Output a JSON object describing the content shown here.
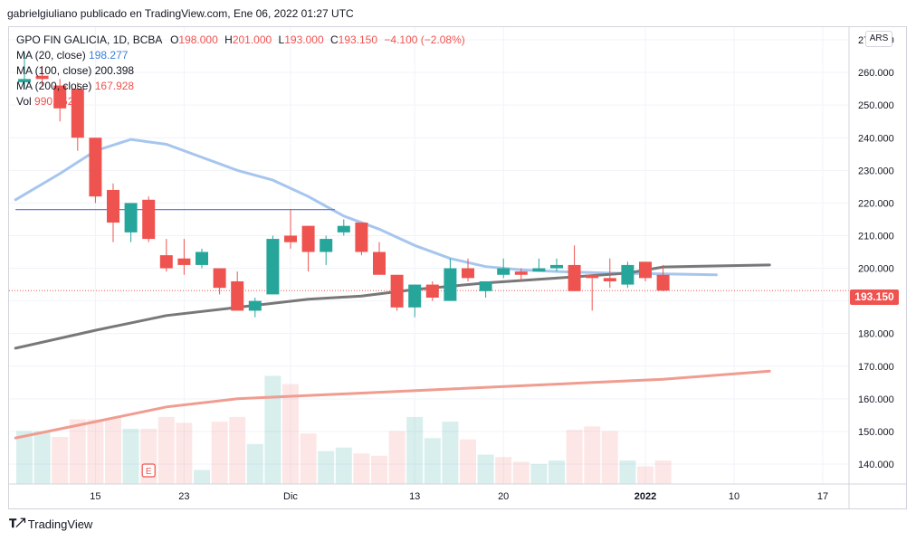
{
  "header": {
    "text": "gabrielgiuliano publicado en TradingView.com, Ene 06, 2022 01:27 UTC"
  },
  "legend": {
    "symbol": "GPO FIN GALICIA, 1D, BCBA",
    "o_label": "O",
    "o": "198.000",
    "h_label": "H",
    "h": "201.000",
    "l_label": "L",
    "l": "193.000",
    "c_label": "C",
    "c": "193.150",
    "change": "−4.100 (−2.08%)",
    "ma20_label": "MA (20, close)",
    "ma20": "198.277",
    "ma100_label": "MA (100, close)",
    "ma100": "200.398",
    "ma200_label": "MA (200, close)",
    "ma200": "167.928",
    "vol_label": "Vol",
    "vol": "990.352K"
  },
  "currency": "ARS",
  "last_price": "193.150",
  "colors": {
    "up": "#26a69a",
    "down": "#ef5350",
    "ma20": "#a6c6ee",
    "ma100": "#787878",
    "ma200": "#f09c90",
    "hline": "#5b7fe0"
  },
  "footer": {
    "brand": "TradingView",
    "logo": "tv-logo-icon"
  },
  "chart_data": {
    "type": "candlestick",
    "y_ticks": [
      "270.000",
      "260.000",
      "250.000",
      "240.000",
      "230.000",
      "220.000",
      "210.000",
      "200.000",
      "190.000",
      "180.000",
      "170.000",
      "160.000",
      "150.000",
      "140.000"
    ],
    "ylim": [
      135,
      275
    ],
    "x_ticks": [
      {
        "label": "15",
        "i": 4
      },
      {
        "label": "23",
        "i": 9
      },
      {
        "label": "Dic",
        "i": 15
      },
      {
        "label": "13",
        "i": 22
      },
      {
        "label": "20",
        "i": 27
      },
      {
        "label": "2022",
        "i": 35
      },
      {
        "label": "10",
        "i": 40
      },
      {
        "label": "17",
        "i": 45
      }
    ],
    "x_count": 48,
    "candles": [
      {
        "i": 0,
        "o": 257,
        "h": 266,
        "l": 255,
        "c": 258
      },
      {
        "i": 1,
        "o": 259,
        "h": 262,
        "l": 256,
        "c": 258
      },
      {
        "i": 2,
        "o": 256,
        "h": 258,
        "l": 245,
        "c": 249
      },
      {
        "i": 3,
        "o": 255,
        "h": 257,
        "l": 236,
        "c": 240
      },
      {
        "i": 4,
        "o": 240,
        "h": 240,
        "l": 220,
        "c": 222
      },
      {
        "i": 5,
        "o": 224,
        "h": 226,
        "l": 208,
        "c": 214
      },
      {
        "i": 6,
        "o": 211,
        "h": 220,
        "l": 208,
        "c": 220
      },
      {
        "i": 7,
        "o": 221,
        "h": 222,
        "l": 208,
        "c": 209
      },
      {
        "i": 8,
        "o": 204,
        "h": 209,
        "l": 199,
        "c": 200
      },
      {
        "i": 9,
        "o": 203,
        "h": 209,
        "l": 198,
        "c": 201
      },
      {
        "i": 10,
        "o": 201,
        "h": 206,
        "l": 200,
        "c": 205
      },
      {
        "i": 11,
        "o": 200,
        "h": 200,
        "l": 192,
        "c": 194
      },
      {
        "i": 12,
        "o": 196,
        "h": 199,
        "l": 187,
        "c": 187
      },
      {
        "i": 13,
        "o": 187,
        "h": 191,
        "l": 185,
        "c": 190
      },
      {
        "i": 14,
        "o": 192,
        "h": 210,
        "l": 192,
        "c": 209
      },
      {
        "i": 15,
        "o": 210,
        "h": 218,
        "l": 206,
        "c": 208
      },
      {
        "i": 16,
        "o": 213,
        "h": 213,
        "l": 199,
        "c": 205
      },
      {
        "i": 17,
        "o": 205,
        "h": 210,
        "l": 201,
        "c": 209
      },
      {
        "i": 18,
        "o": 211,
        "h": 215,
        "l": 210,
        "c": 213
      },
      {
        "i": 19,
        "o": 214,
        "h": 214,
        "l": 204,
        "c": 205
      },
      {
        "i": 20,
        "o": 205,
        "h": 208,
        "l": 198,
        "c": 198
      },
      {
        "i": 21,
        "o": 198,
        "h": 198,
        "l": 187,
        "c": 188
      },
      {
        "i": 22,
        "o": 188,
        "h": 195,
        "l": 185,
        "c": 195
      },
      {
        "i": 23,
        "o": 195,
        "h": 196,
        "l": 190,
        "c": 191
      },
      {
        "i": 24,
        "o": 190,
        "h": 203,
        "l": 190,
        "c": 200
      },
      {
        "i": 25,
        "o": 200,
        "h": 203,
        "l": 196,
        "c": 197
      },
      {
        "i": 26,
        "o": 193,
        "h": 196,
        "l": 191,
        "c": 196
      },
      {
        "i": 27,
        "o": 198,
        "h": 203,
        "l": 197,
        "c": 200
      },
      {
        "i": 28,
        "o": 199,
        "h": 200,
        "l": 196,
        "c": 198
      },
      {
        "i": 29,
        "o": 199,
        "h": 203,
        "l": 199,
        "c": 200
      },
      {
        "i": 30,
        "o": 200,
        "h": 203,
        "l": 199,
        "c": 201
      },
      {
        "i": 31,
        "o": 201,
        "h": 207,
        "l": 193,
        "c": 193
      },
      {
        "i": 32,
        "o": 198,
        "h": 197,
        "l": 187,
        "c": 197
      },
      {
        "i": 33,
        "o": 197,
        "h": 203,
        "l": 194,
        "c": 196
      },
      {
        "i": 34,
        "o": 195,
        "h": 202,
        "l": 194,
        "c": 201
      },
      {
        "i": 35,
        "o": 202,
        "h": 202,
        "l": 196,
        "c": 197
      },
      {
        "i": 36,
        "o": 198,
        "h": 201,
        "l": 193,
        "c": 193.15
      }
    ],
    "volume": [
      {
        "i": 0,
        "v": 0.45,
        "up": true
      },
      {
        "i": 1,
        "v": 0.45,
        "up": true
      },
      {
        "i": 2,
        "v": 0.4,
        "up": false
      },
      {
        "i": 3,
        "v": 0.55,
        "up": false
      },
      {
        "i": 4,
        "v": 0.55,
        "up": false
      },
      {
        "i": 5,
        "v": 0.56,
        "up": false
      },
      {
        "i": 6,
        "v": 0.47,
        "up": true
      },
      {
        "i": 7,
        "v": 0.47,
        "up": false
      },
      {
        "i": 8,
        "v": 0.57,
        "up": false
      },
      {
        "i": 9,
        "v": 0.52,
        "up": false
      },
      {
        "i": 10,
        "v": 0.12,
        "up": true
      },
      {
        "i": 11,
        "v": 0.53,
        "up": false
      },
      {
        "i": 12,
        "v": 0.57,
        "up": false
      },
      {
        "i": 13,
        "v": 0.34,
        "up": true
      },
      {
        "i": 14,
        "v": 0.92,
        "up": true
      },
      {
        "i": 15,
        "v": 0.85,
        "up": false
      },
      {
        "i": 16,
        "v": 0.43,
        "up": false
      },
      {
        "i": 17,
        "v": 0.28,
        "up": true
      },
      {
        "i": 18,
        "v": 0.31,
        "up": true
      },
      {
        "i": 19,
        "v": 0.26,
        "up": false
      },
      {
        "i": 20,
        "v": 0.24,
        "up": false
      },
      {
        "i": 21,
        "v": 0.45,
        "up": false
      },
      {
        "i": 22,
        "v": 0.57,
        "up": true
      },
      {
        "i": 23,
        "v": 0.39,
        "up": true
      },
      {
        "i": 24,
        "v": 0.53,
        "up": true
      },
      {
        "i": 25,
        "v": 0.38,
        "up": false
      },
      {
        "i": 26,
        "v": 0.25,
        "up": true
      },
      {
        "i": 27,
        "v": 0.23,
        "up": false
      },
      {
        "i": 28,
        "v": 0.19,
        "up": false
      },
      {
        "i": 29,
        "v": 0.17,
        "up": true
      },
      {
        "i": 30,
        "v": 0.2,
        "up": true
      },
      {
        "i": 31,
        "v": 0.46,
        "up": false
      },
      {
        "i": 32,
        "v": 0.49,
        "up": false
      },
      {
        "i": 33,
        "v": 0.45,
        "up": false
      },
      {
        "i": 34,
        "v": 0.2,
        "up": true
      },
      {
        "i": 35,
        "v": 0.15,
        "up": false
      },
      {
        "i": 36,
        "v": 0.2,
        "up": false
      }
    ],
    "ma20": [
      [
        -0.5,
        221
      ],
      [
        2,
        229
      ],
      [
        4,
        236
      ],
      [
        6,
        239.5
      ],
      [
        8,
        238
      ],
      [
        10,
        234
      ],
      [
        12,
        230
      ],
      [
        14,
        227
      ],
      [
        16,
        222
      ],
      [
        17,
        219
      ],
      [
        18,
        216
      ],
      [
        20,
        212
      ],
      [
        22,
        207
      ],
      [
        24,
        203
      ],
      [
        26,
        200.5
      ],
      [
        28,
        199.5
      ],
      [
        30,
        199
      ],
      [
        33,
        198.5
      ],
      [
        36,
        198.3
      ],
      [
        39,
        198
      ]
    ],
    "ma100": [
      [
        -0.5,
        175.5
      ],
      [
        4,
        181
      ],
      [
        8,
        185.5
      ],
      [
        12,
        188
      ],
      [
        16,
        190.5
      ],
      [
        19,
        191.5
      ],
      [
        22,
        193.5
      ],
      [
        26,
        195.5
      ],
      [
        30,
        197
      ],
      [
        34,
        198.5
      ],
      [
        36,
        200.4
      ],
      [
        42,
        201
      ]
    ],
    "ma200": [
      [
        -0.5,
        148
      ],
      [
        4,
        153
      ],
      [
        8,
        157.5
      ],
      [
        12,
        160
      ],
      [
        18,
        161.5
      ],
      [
        24,
        163
      ],
      [
        30,
        164.5
      ],
      [
        36,
        166
      ],
      [
        42,
        168.5
      ]
    ],
    "hline": {
      "y": 218,
      "from": -0.5,
      "to": 17.5
    },
    "last_line": 193.15
  }
}
